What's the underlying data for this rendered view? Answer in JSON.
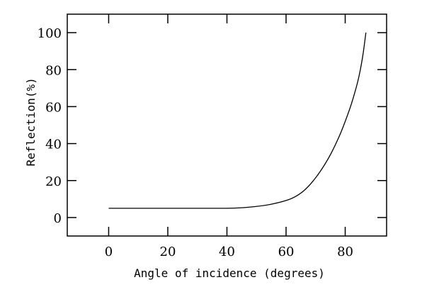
{
  "chart_data": {
    "type": "line",
    "title": "",
    "xlabel": "Angle of incidence (degrees)",
    "ylabel": "Reflection(%)",
    "xlim": [
      -14,
      94
    ],
    "ylim": [
      -10,
      110
    ],
    "xticks": [
      0,
      20,
      40,
      60,
      80
    ],
    "yticks": [
      0,
      20,
      40,
      60,
      80,
      100
    ],
    "grid": false,
    "legend": "none",
    "line_color": "#000000",
    "series": [
      {
        "x": [
          0,
          10,
          20,
          30,
          40,
          45,
          50,
          55,
          60,
          63,
          66,
          69,
          72,
          75,
          78,
          80,
          82,
          84,
          85,
          86,
          87
        ],
        "values": [
          5,
          5,
          5,
          5,
          5,
          5.3,
          6,
          7.2,
          9.2,
          11.2,
          14.5,
          19.5,
          26,
          34,
          44,
          52,
          61,
          72,
          79,
          88,
          100
        ]
      }
    ]
  }
}
